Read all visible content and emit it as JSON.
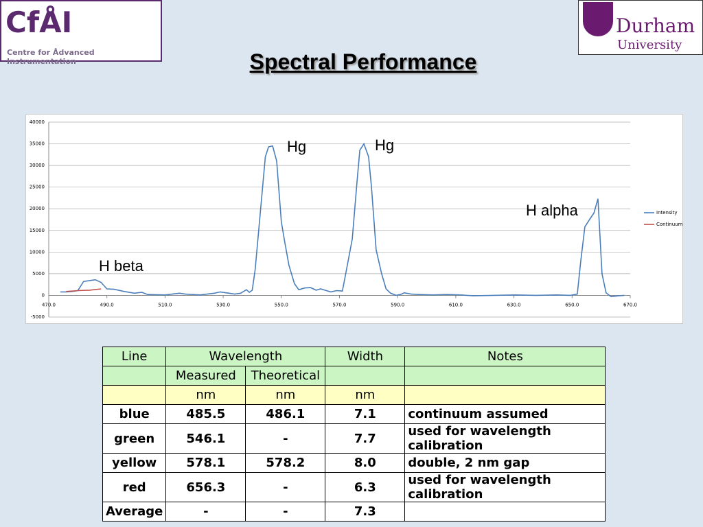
{
  "header": {
    "title": "Spectral Performance",
    "left_logo": {
      "mark": "CfÅI",
      "caption": "Centre for Ådvanced Instrumentation"
    },
    "right_logo": {
      "line1": "Durham",
      "line2": "University"
    }
  },
  "chart_data": {
    "type": "line",
    "series": [
      {
        "name": "Intensity",
        "color": "#4a7ebb",
        "x": [
          474,
          476,
          478,
          480,
          482,
          483,
          486,
          488,
          490,
          492.5,
          496,
          499.5,
          502,
          504,
          510,
          515,
          517,
          522,
          527,
          529,
          531,
          534,
          536,
          538,
          539,
          540,
          541,
          544.5,
          545.6,
          547,
          548.4,
          550,
          551,
          552.6,
          554.5,
          556,
          558,
          560,
          562,
          563.5,
          565,
          567,
          569,
          571,
          572,
          574.4,
          576,
          577,
          578.4,
          580,
          581,
          582.6,
          584.5,
          586,
          587.6,
          589.5,
          591,
          592.3,
          594.7,
          597.5,
          602,
          607,
          611.7,
          616,
          623,
          630.6,
          637.6,
          644.7,
          649.4,
          651.8,
          653,
          654.4,
          656,
          657.5,
          658.9,
          660.3,
          661.7,
          663.4,
          666,
          668
        ],
        "values": [
          800,
          800,
          900,
          1100,
          3200,
          3300,
          3600,
          3000,
          1500,
          1400,
          900,
          500,
          700,
          200,
          100,
          500,
          300,
          100,
          500,
          800,
          600,
          300,
          500,
          1300,
          700,
          1200,
          6000,
          32000,
          34300,
          34500,
          31000,
          17000,
          13000,
          7000,
          2700,
          1300,
          1700,
          1800,
          1200,
          1500,
          1200,
          800,
          1100,
          1000,
          4500,
          13000,
          26000,
          33500,
          35000,
          32000,
          25000,
          10500,
          5000,
          1500,
          500,
          0,
          200,
          600,
          300,
          200,
          100,
          200,
          100,
          -100,
          0,
          100,
          0,
          100,
          0,
          300,
          8000,
          15800,
          17500,
          19000,
          22300,
          5000,
          600,
          -300,
          -100,
          0
        ]
      },
      {
        "name": "Continuum",
        "color": "#c0504d",
        "x": [
          476,
          480,
          484,
          488
        ],
        "values": [
          900,
          1100,
          1200,
          1500
        ]
      }
    ],
    "annotations": [
      "Hg",
      "Hg",
      "H alpha",
      "H beta"
    ],
    "xlim": [
      470,
      670
    ],
    "xticks": [
      {
        "value": 470,
        "label": "470.0"
      },
      {
        "value": 490,
        "label": "490.0"
      },
      {
        "value": 510,
        "label": "510.0"
      },
      {
        "value": 530,
        "label": "530.0"
      },
      {
        "value": 550,
        "label": "550.0"
      },
      {
        "value": 570,
        "label": "570.0"
      },
      {
        "value": 590,
        "label": "590.0"
      },
      {
        "value": 610,
        "label": "610.0"
      },
      {
        "value": 630,
        "label": "630.0"
      },
      {
        "value": 650,
        "label": "650.0"
      },
      {
        "value": 670,
        "label": "670.0"
      }
    ],
    "ylim": [
      -5000,
      40000
    ],
    "yticks": [
      -5000,
      0,
      5000,
      10000,
      15000,
      20000,
      25000,
      30000,
      35000,
      40000
    ],
    "grid": true,
    "legend": "right"
  },
  "table": {
    "header": [
      "Line",
      "Wavelength",
      "Width",
      "Notes"
    ],
    "subheader": [
      "Measured",
      "Theoretical"
    ],
    "units": [
      "nm",
      "nm",
      "nm"
    ],
    "rows": [
      [
        "blue",
        "485.5",
        "486.1",
        "7.1",
        "continuum assumed"
      ],
      [
        "green",
        "546.1",
        "-",
        "7.7",
        "used for wavelength calibration"
      ],
      [
        "yellow",
        "578.1",
        "578.2",
        "8.0",
        "double, 2 nm gap"
      ],
      [
        "red",
        "656.3",
        "-",
        "6.3",
        "used for wavelength calibration"
      ],
      [
        "Average",
        "-",
        "-",
        "7.3"
      ]
    ]
  }
}
